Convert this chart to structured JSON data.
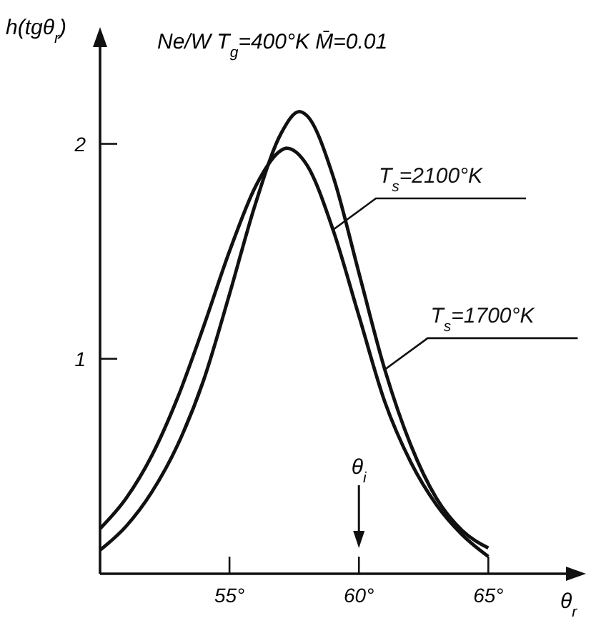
{
  "chart_data": {
    "type": "line",
    "title": "Ne/W   T$_{g}$=400°K   M̄=0.01",
    "xlabel": "θ$_{r}$",
    "ylabel": "h(tgθ$_{r}$)",
    "xlim": [
      50,
      68
    ],
    "ylim": [
      0,
      2.45
    ],
    "xticks": [
      {
        "value": 55,
        "label": "55°"
      },
      {
        "value": 60,
        "label": "60°"
      },
      {
        "value": 65,
        "label": "65°"
      }
    ],
    "yticks": [
      1,
      2
    ],
    "grid": false,
    "marker": "none",
    "line_style": "solid",
    "annotations": [
      "θ$_{i}$"
    ],
    "series": [
      {
        "name": "T$_{s}$=2100°K",
        "color": "#111111",
        "x": [
          50,
          51,
          52,
          53,
          54,
          55,
          56,
          57,
          57.2,
          58,
          59,
          60,
          61,
          62,
          63,
          64,
          65
        ],
        "values": [
          0.21,
          0.35,
          0.55,
          0.82,
          1.15,
          1.5,
          1.8,
          1.97,
          1.98,
          1.9,
          1.6,
          1.2,
          0.8,
          0.52,
          0.32,
          0.18,
          0.08
        ]
      },
      {
        "name": "T$_{s}$=1700°K",
        "color": "#111111",
        "x": [
          50,
          51,
          52,
          53,
          54,
          55,
          56,
          57,
          57.7,
          58,
          59,
          60,
          61,
          62,
          63,
          64,
          65
        ],
        "values": [
          0.11,
          0.22,
          0.38,
          0.6,
          0.9,
          1.3,
          1.72,
          2.05,
          2.15,
          2.13,
          1.85,
          1.4,
          0.95,
          0.6,
          0.35,
          0.2,
          0.12
        ]
      }
    ]
  }
}
